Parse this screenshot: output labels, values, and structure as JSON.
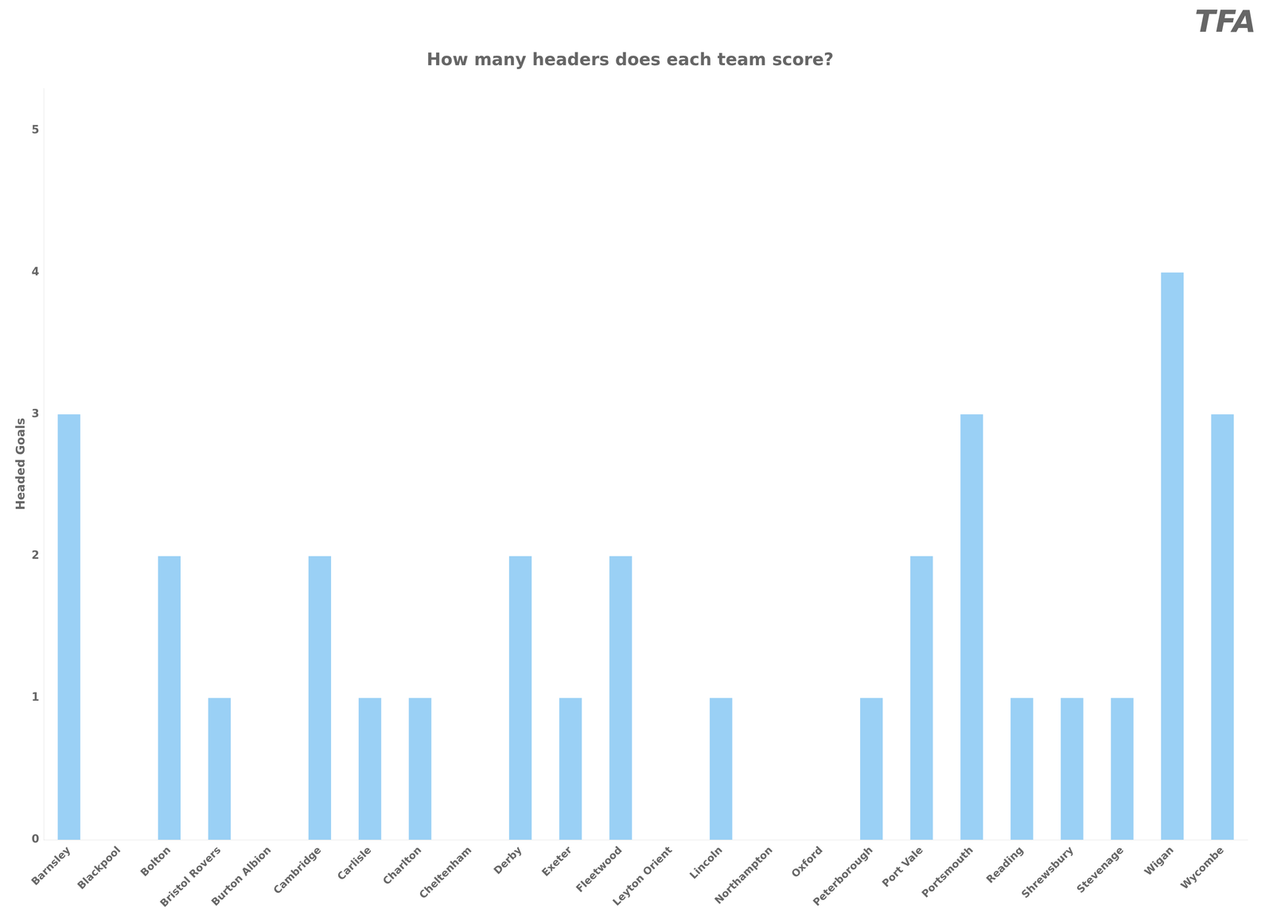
{
  "chart_data": {
    "type": "bar",
    "title": "How many headers does each team score?",
    "ylabel": "Headed Goals",
    "annotations": [
      {
        "text": "TFA"
      }
    ],
    "categories": [
      "Barnsley",
      "Blackpool",
      "Bolton",
      "Bristol Rovers",
      "Burton Albion",
      "Cambridge",
      "Carlisle",
      "Charlton",
      "Cheltenham",
      "Derby",
      "Exeter",
      "Fleetwood",
      "Leyton Orient",
      "Lincoln",
      "Northampton",
      "Oxford",
      "Peterborough",
      "Port Vale",
      "Portsmouth",
      "Reading",
      "Shrewsbury",
      "Stevenage",
      "Wigan",
      "Wycombe"
    ],
    "values": [
      3,
      0,
      2,
      1,
      0,
      2,
      1,
      1,
      0,
      2,
      1,
      2,
      0,
      1,
      0,
      0,
      1,
      2,
      3,
      1,
      1,
      1,
      4,
      3
    ],
    "ylim": [
      0,
      5.3
    ],
    "yticks": [
      0,
      1,
      2,
      3,
      4,
      5
    ],
    "grid": false
  }
}
